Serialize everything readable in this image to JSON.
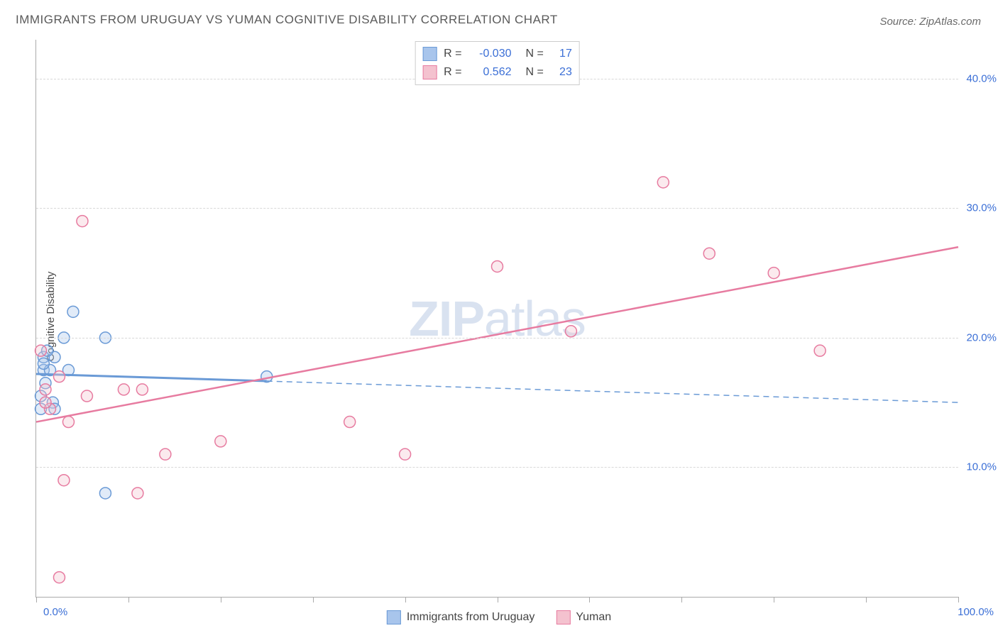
{
  "title": "IMMIGRANTS FROM URUGUAY VS YUMAN COGNITIVE DISABILITY CORRELATION CHART",
  "source": "Source: ZipAtlas.com",
  "watermark_prefix": "ZIP",
  "watermark_suffix": "atlas",
  "ylabel": "Cognitive Disability",
  "chart": {
    "type": "scatter",
    "xlim": [
      0,
      100
    ],
    "ylim": [
      0,
      43
    ],
    "background_color": "#ffffff",
    "grid_color": "#d8d8d8",
    "axis_color": "#aaaaaa",
    "label_color": "#3b6fd6",
    "yticks": [
      10,
      20,
      30,
      40
    ],
    "ytick_labels": [
      "10.0%",
      "20.0%",
      "30.0%",
      "40.0%"
    ],
    "xticks": [
      0,
      10,
      20,
      30,
      40,
      50,
      60,
      70,
      80,
      90,
      100
    ],
    "xtick_labels": {
      "0": "0.0%",
      "100": "100.0%"
    },
    "marker_radius": 8,
    "marker_stroke_width": 1.5,
    "marker_fill_opacity": 0.35,
    "series": [
      {
        "name": "Immigrants from Uruguay",
        "color_fill": "#a8c5ec",
        "color_stroke": "#6a9ad6",
        "R": "-0.030",
        "N": "17",
        "trend": {
          "x1": 0,
          "y1": 17.2,
          "x2": 100,
          "y2": 15.0,
          "solid_until_x": 25,
          "solid_width": 3,
          "dash_width": 1.5
        },
        "points": [
          {
            "x": 4.0,
            "y": 22.0
          },
          {
            "x": 3.0,
            "y": 20.0
          },
          {
            "x": 7.5,
            "y": 20.0
          },
          {
            "x": 2.0,
            "y": 18.5
          },
          {
            "x": 0.8,
            "y": 18.5
          },
          {
            "x": 1.2,
            "y": 19.0
          },
          {
            "x": 0.8,
            "y": 17.5
          },
          {
            "x": 1.5,
            "y": 17.5
          },
          {
            "x": 3.5,
            "y": 17.5
          },
          {
            "x": 1.0,
            "y": 16.5
          },
          {
            "x": 0.5,
            "y": 15.5
          },
          {
            "x": 1.8,
            "y": 15.0
          },
          {
            "x": 0.5,
            "y": 14.5
          },
          {
            "x": 2.0,
            "y": 14.5
          },
          {
            "x": 25.0,
            "y": 17.0
          },
          {
            "x": 7.5,
            "y": 8.0
          },
          {
            "x": 0.8,
            "y": 18.0
          }
        ]
      },
      {
        "name": "Yuman",
        "color_fill": "#f4c2cf",
        "color_stroke": "#e77ba0",
        "R": "0.562",
        "N": "23",
        "trend": {
          "x1": 0,
          "y1": 13.5,
          "x2": 100,
          "y2": 27.0,
          "solid_until_x": 100,
          "solid_width": 2.5,
          "dash_width": 0
        },
        "points": [
          {
            "x": 5.0,
            "y": 29.0
          },
          {
            "x": 0.5,
            "y": 19.0
          },
          {
            "x": 2.5,
            "y": 17.0
          },
          {
            "x": 9.5,
            "y": 16.0
          },
          {
            "x": 11.5,
            "y": 16.0
          },
          {
            "x": 1.0,
            "y": 16.0
          },
          {
            "x": 5.5,
            "y": 15.5
          },
          {
            "x": 1.5,
            "y": 14.5
          },
          {
            "x": 3.5,
            "y": 13.5
          },
          {
            "x": 34.0,
            "y": 13.5
          },
          {
            "x": 40.0,
            "y": 11.0
          },
          {
            "x": 20.0,
            "y": 12.0
          },
          {
            "x": 14.0,
            "y": 11.0
          },
          {
            "x": 3.0,
            "y": 9.0
          },
          {
            "x": 11.0,
            "y": 8.0
          },
          {
            "x": 2.5,
            "y": 1.5
          },
          {
            "x": 50.0,
            "y": 25.5
          },
          {
            "x": 58.0,
            "y": 20.5
          },
          {
            "x": 68.0,
            "y": 32.0
          },
          {
            "x": 73.0,
            "y": 26.5
          },
          {
            "x": 80.0,
            "y": 25.0
          },
          {
            "x": 85.0,
            "y": 19.0
          },
          {
            "x": 1.0,
            "y": 15.0
          }
        ]
      }
    ],
    "legend_top": {
      "R_label": "R =",
      "N_label": "N ="
    }
  }
}
